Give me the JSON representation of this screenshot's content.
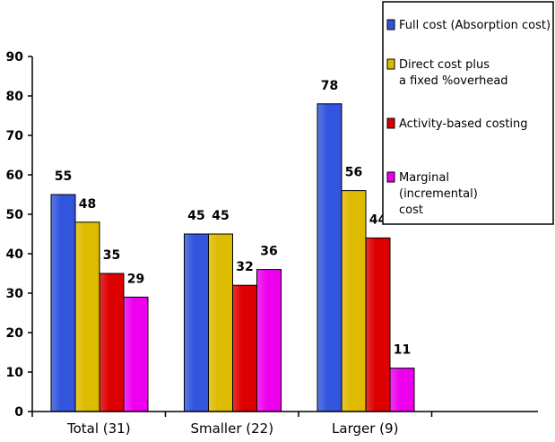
{
  "chart_data": {
    "type": "bar",
    "categories": [
      "Total (31)",
      "Smaller (22)",
      "Larger (9)"
    ],
    "series": [
      {
        "name": "Full cost (Absorption cost)",
        "values": [
          55,
          45,
          78
        ],
        "labels": [
          "55",
          "45",
          "78"
        ],
        "color": "#3355dd"
      },
      {
        "name": "Direct cost plus a fixed %overhead",
        "values": [
          48,
          45,
          56
        ],
        "labels": [
          "48",
          "45",
          "56"
        ],
        "color": "#ddbb00"
      },
      {
        "name": "Activity-based costing",
        "values": [
          35,
          32,
          44
        ],
        "labels": [
          "35",
          "32",
          "44"
        ],
        "color": "#dd0000"
      },
      {
        "name": "Marginal (incremental) cost",
        "values": [
          29,
          36,
          11
        ],
        "labels": [
          "29",
          "36",
          "11"
        ],
        "color": "#ee00ee"
      }
    ],
    "legend_lines": [
      [
        "Full cost (Absorption cost)"
      ],
      [
        "Direct cost plus",
        "a fixed %overhead"
      ],
      [
        "Activity-based costing"
      ],
      [
        "Marginal",
        "(incremental)",
        "cost"
      ]
    ],
    "ylim": [
      0,
      90
    ],
    "yticks": [
      "0",
      "10",
      "20",
      "30",
      "40",
      "50",
      "60",
      "70",
      "80",
      "90"
    ],
    "xlabel": "",
    "ylabel": "",
    "title": "",
    "grid": false,
    "legend_position": "top-right"
  }
}
